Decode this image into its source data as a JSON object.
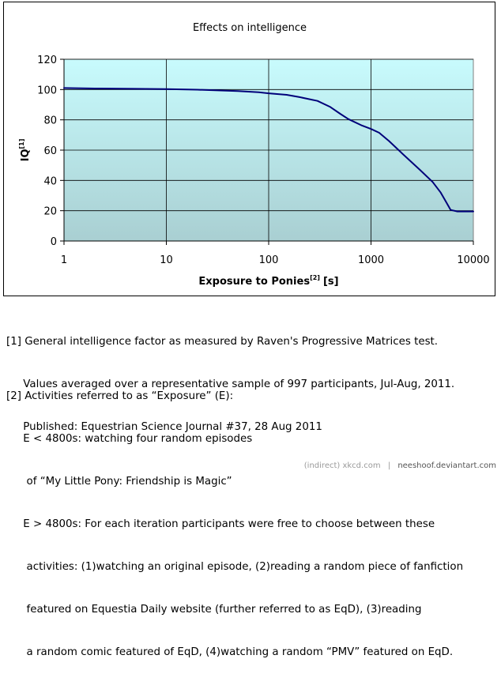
{
  "chart_data": {
    "type": "line",
    "title": "Effects on intelligence",
    "ylabel": "IQ",
    "ylabel_sup": "[1]",
    "xlabel": "Exposure to Ponies",
    "xlabel_sup": "[2]",
    "xlabel_unit": "[s]",
    "xscale": "log",
    "xlim": [
      1,
      10000
    ],
    "ylim": [
      0,
      120
    ],
    "xticks": [
      1,
      10,
      100,
      1000,
      10000
    ],
    "xtick_labels": [
      "1",
      "10",
      "100",
      "1000",
      "10000"
    ],
    "yticks": [
      0,
      20,
      40,
      60,
      80,
      100,
      120
    ],
    "ytick_labels": [
      "0",
      "20",
      "40",
      "60",
      "80",
      "100",
      "120"
    ],
    "grid": true,
    "legend": "none",
    "plot_bg_top": "#c8fbfd",
    "plot_bg_bottom": "#a9cfd2",
    "line_color": "#00007a",
    "series": [
      {
        "x": [
          1,
          2,
          5,
          10,
          20,
          50,
          80,
          100,
          150,
          200,
          300,
          400,
          500,
          600,
          800,
          1000,
          1200,
          1500,
          2000,
          3000,
          4000,
          4800,
          5500,
          6000,
          7000,
          10000
        ],
        "values": [
          101,
          100.7,
          100.5,
          100.3,
          99.9,
          99,
          98.2,
          97.5,
          96.5,
          95,
          92.5,
          88.5,
          84,
          80.5,
          76.5,
          74,
          71.5,
          66,
          58,
          47,
          39,
          32,
          25,
          20.5,
          19.5,
          19.5
        ]
      }
    ]
  },
  "notes": {
    "note1": [
      "[1] General intelligence factor as measured by Raven's Progressive Matrices test.",
      "     Values averaged over a representative sample of 997 participants, Jul-Aug, 2011.",
      "     Published: Equestrian Science Journal #37, 28 Aug 2011"
    ],
    "note2": [
      "[2] Activities referred to as “Exposure” (E):",
      "     E < 4800s: watching four random episodes",
      "      of “My Little Pony: Friendship is Magic”",
      "     E > 4800s: For each iteration participants were free to choose between these",
      "      activities: (1)watching an original episode, (2)reading a random piece of fanfiction",
      "      featured on Equestia Daily website (further referred to as EqD), (3)reading",
      "      a random comic featured of EqD, (4)watching a random “PMV” featured on EqD."
    ]
  },
  "footer": {
    "source": "(indirect) xkcd.com",
    "separator": "|",
    "credit": "neeshoof.deviantart.com"
  }
}
